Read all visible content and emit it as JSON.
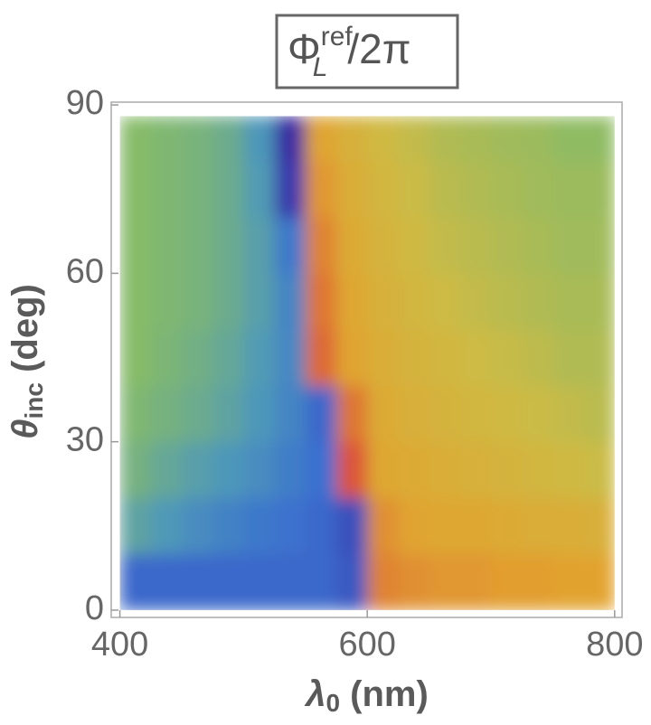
{
  "chart_data": {
    "type": "heatmap",
    "title": {
      "base": "Φ",
      "sub": "L",
      "sup": "ref",
      "rest": "/2π"
    },
    "xlabel": {
      "base": "λ",
      "sub": "0",
      "rest": " (nm)"
    },
    "ylabel": {
      "base": "θ",
      "sub": "inc",
      "rest": " (deg)"
    },
    "xlim": [
      393,
      806
    ],
    "ylim": [
      -1.3,
      90.5
    ],
    "xticks": [
      400,
      600,
      800
    ],
    "yticks": [
      0,
      30,
      60,
      90
    ],
    "xbins": [
      400,
      425,
      450,
      475,
      500,
      525,
      550,
      575,
      600,
      625,
      650,
      675,
      700,
      725,
      750,
      775,
      800
    ],
    "ybins": [
      0,
      10,
      20,
      30,
      40,
      50,
      60,
      70,
      80,
      88
    ],
    "colormap": [
      "#3b1f9c",
      "#3a6fd0",
      "#4f9ab8",
      "#86bb68",
      "#cdbb45",
      "#e2a22f",
      "#d8343a"
    ],
    "values": [
      [
        0.15,
        0.15,
        0.15,
        0.15,
        0.15,
        0.15,
        0.15,
        0.12,
        0.88,
        0.86,
        0.85,
        0.85,
        0.84,
        0.84,
        0.83,
        0.83
      ],
      [
        0.38,
        0.33,
        0.28,
        0.24,
        0.2,
        0.18,
        0.15,
        0.1,
        0.86,
        0.82,
        0.8,
        0.8,
        0.78,
        0.77,
        0.76,
        0.75
      ],
      [
        0.45,
        0.4,
        0.36,
        0.32,
        0.28,
        0.22,
        0.17,
        0.95,
        0.8,
        0.78,
        0.76,
        0.74,
        0.72,
        0.7,
        0.68,
        0.66
      ],
      [
        0.48,
        0.45,
        0.42,
        0.38,
        0.32,
        0.25,
        0.15,
        0.9,
        0.78,
        0.75,
        0.72,
        0.7,
        0.68,
        0.66,
        0.64,
        0.62
      ],
      [
        0.5,
        0.47,
        0.44,
        0.4,
        0.34,
        0.26,
        0.92,
        0.82,
        0.76,
        0.72,
        0.7,
        0.67,
        0.65,
        0.63,
        0.6,
        0.6
      ],
      [
        0.5,
        0.48,
        0.46,
        0.42,
        0.36,
        0.25,
        0.9,
        0.8,
        0.74,
        0.7,
        0.67,
        0.64,
        0.62,
        0.6,
        0.58,
        0.58
      ],
      [
        0.5,
        0.48,
        0.46,
        0.42,
        0.36,
        0.2,
        0.88,
        0.78,
        0.72,
        0.68,
        0.64,
        0.62,
        0.6,
        0.58,
        0.56,
        0.56
      ],
      [
        0.5,
        0.48,
        0.46,
        0.42,
        0.34,
        0.05,
        0.85,
        0.76,
        0.7,
        0.66,
        0.62,
        0.6,
        0.58,
        0.56,
        0.55,
        0.55
      ],
      [
        0.5,
        0.48,
        0.46,
        0.42,
        0.32,
        0.02,
        0.82,
        0.74,
        0.68,
        0.64,
        0.6,
        0.58,
        0.56,
        0.55,
        0.52,
        0.52
      ]
    ]
  }
}
